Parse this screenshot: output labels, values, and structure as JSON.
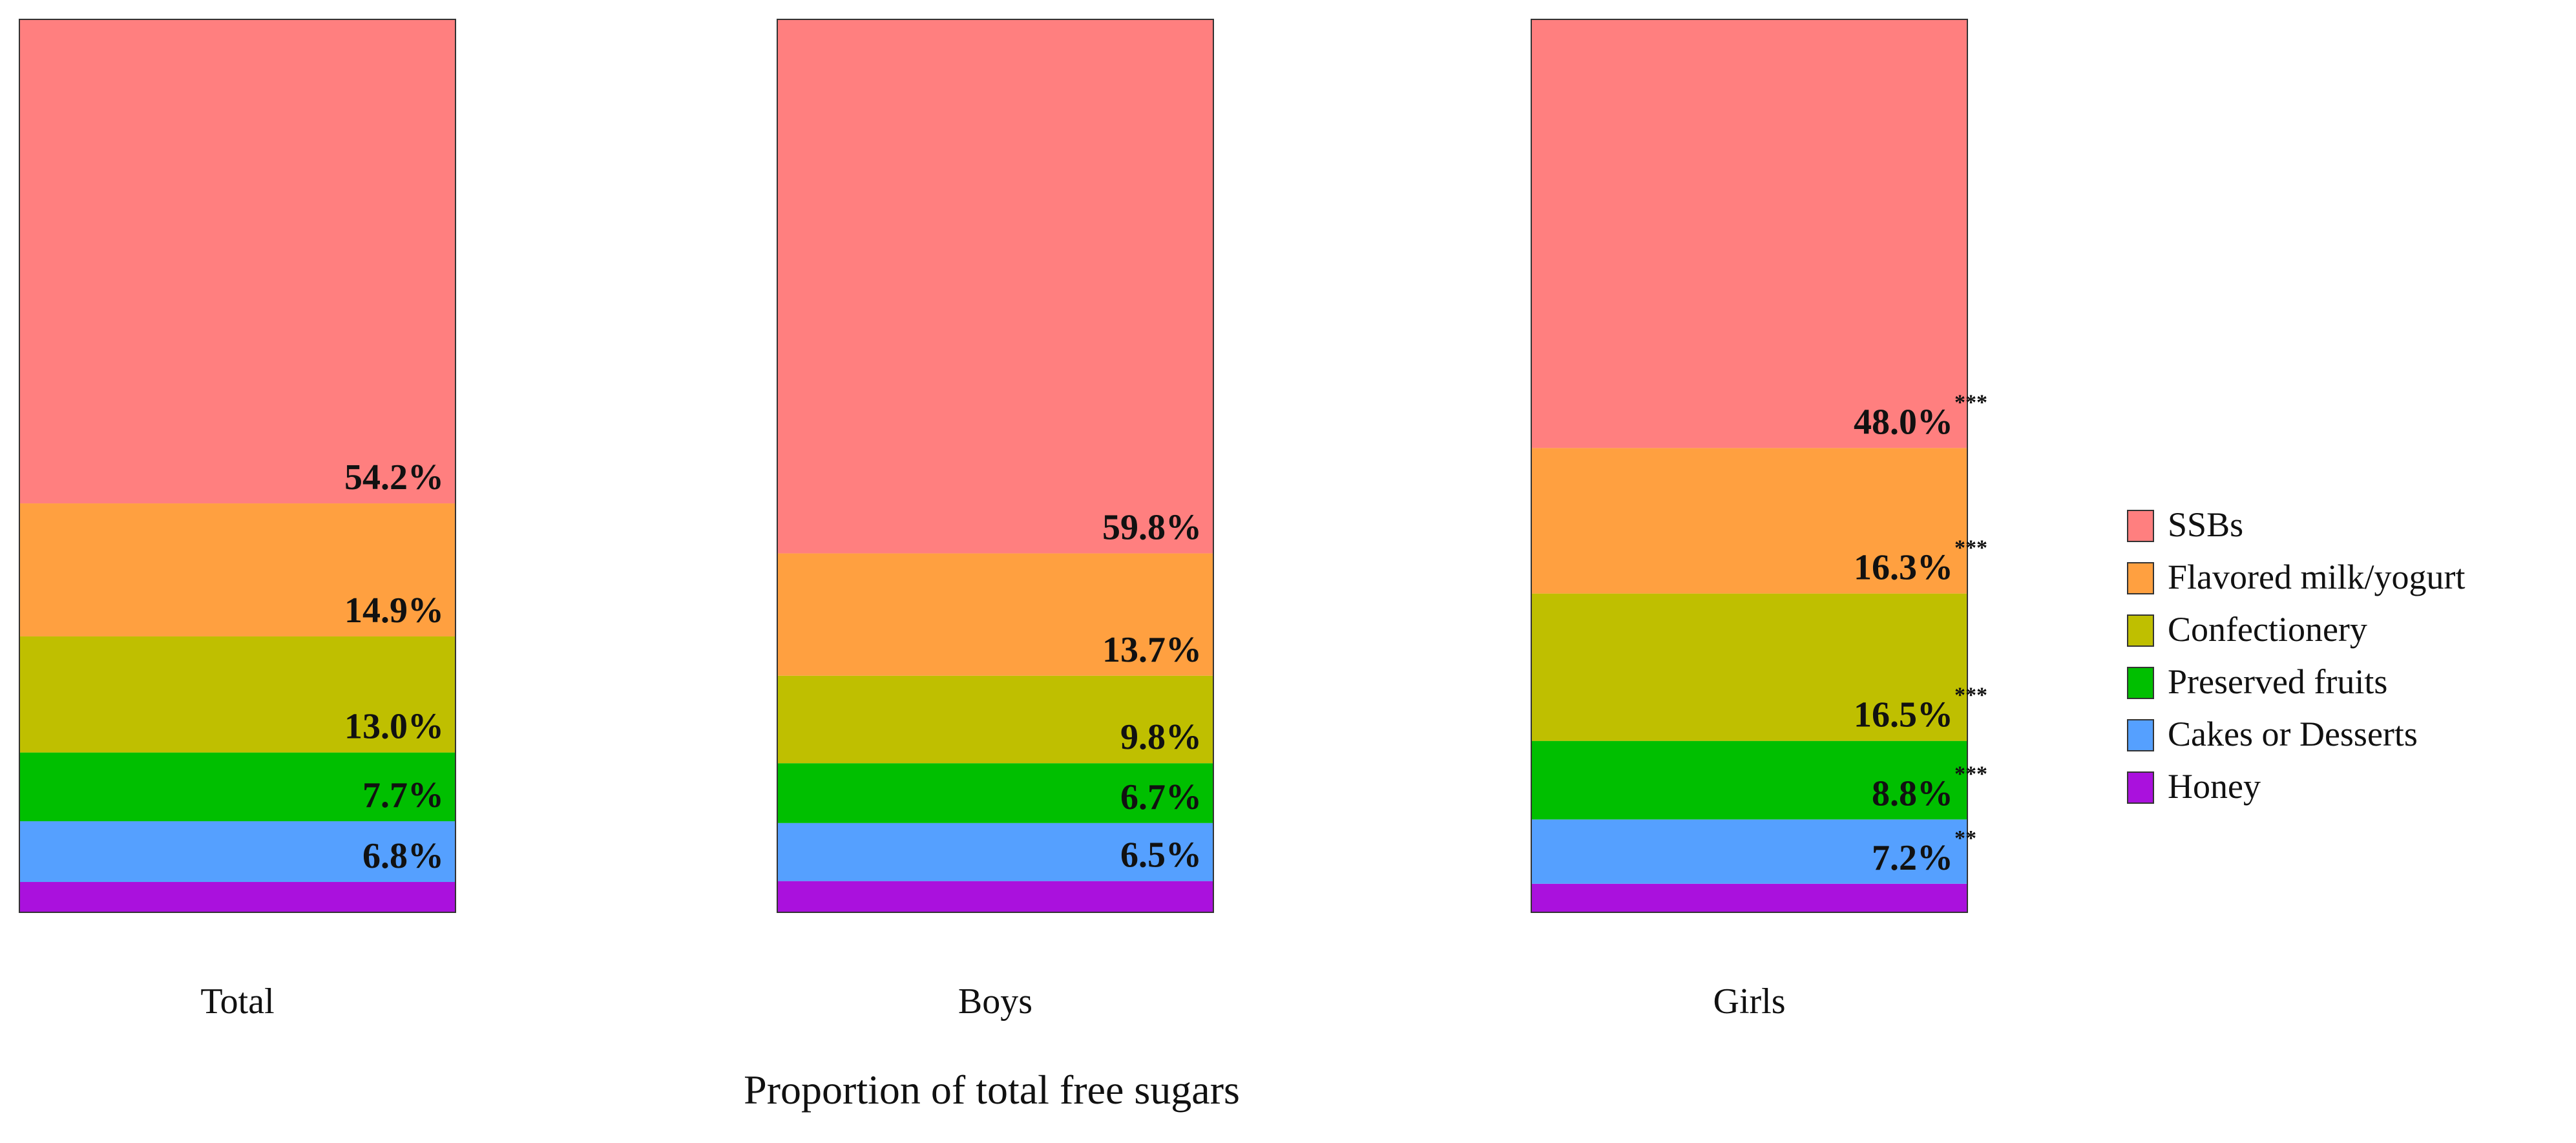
{
  "chart_data": {
    "type": "bar",
    "stacked": true,
    "normalized": true,
    "categories": [
      "Total",
      "Boys",
      "Girls"
    ],
    "xlabel": "Proportion of total free sugars",
    "ylabel": "",
    "ylim": [
      0,
      100
    ],
    "grid": false,
    "legend_position": "right",
    "series": [
      {
        "name": "SSBs",
        "color": "#ff7f7f",
        "values": [
          54.2,
          59.8,
          48.0
        ],
        "labels": [
          "54.2%",
          "59.8%",
          "48.0%"
        ],
        "significance": [
          "",
          "",
          "***"
        ]
      },
      {
        "name": "Flavored milk/yogurt",
        "color": "#ffa040",
        "values": [
          14.9,
          13.7,
          16.3
        ],
        "labels": [
          "14.9%",
          "13.7%",
          "16.3%"
        ],
        "significance": [
          "",
          "",
          "***"
        ]
      },
      {
        "name": "Confectionery",
        "color": "#bfbf00",
        "values": [
          13.0,
          9.8,
          16.5
        ],
        "labels": [
          "13.0%",
          "9.8%",
          "16.5%"
        ],
        "significance": [
          "",
          "",
          "***"
        ]
      },
      {
        "name": "Preserved fruits",
        "color": "#00bf00",
        "values": [
          7.7,
          6.7,
          8.8
        ],
        "labels": [
          "7.7%",
          "6.7%",
          "8.8%"
        ],
        "significance": [
          "",
          "",
          "***"
        ]
      },
      {
        "name": "Cakes or Desserts",
        "color": "#55a0ff",
        "values": [
          6.8,
          6.5,
          7.2
        ],
        "labels": [
          "6.8%",
          "6.5%",
          "7.2%"
        ],
        "significance": [
          "",
          "",
          "**"
        ]
      },
      {
        "name": "Honey",
        "color": "#aa11dd",
        "values": [
          3.4,
          3.5,
          3.2
        ],
        "labels": [
          "",
          "",
          ""
        ],
        "significance": [
          "",
          "",
          ""
        ]
      }
    ]
  }
}
